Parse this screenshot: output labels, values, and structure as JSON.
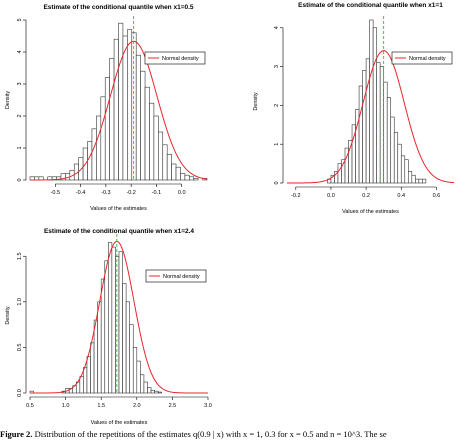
{
  "caption": {
    "label": "Figure 2.",
    "text": "Distribution of the repetitions of the estimates q(0.9 | x) with x = 1, 0.3 for x = 0.5 and n = 10^3. The se"
  },
  "chart_data": [
    {
      "type": "bar",
      "title": "Estimate of the conditional quantile when x1=0.5",
      "xlabel": "Values of the estimates",
      "ylabel": "Density",
      "xlim": [
        -0.6,
        0.1
      ],
      "ylim": [
        0,
        5
      ],
      "xticks": [
        -0.5,
        -0.4,
        -0.3,
        -0.2,
        -0.1,
        0.0
      ],
      "xtick_labels": [
        "-0.5",
        "-0.4",
        "-0.3",
        "-0.2",
        "-0.1",
        "0.0"
      ],
      "yticks": [
        0,
        1,
        2,
        3,
        4,
        5
      ],
      "ytick_labels": [
        "0",
        "1",
        "2",
        "3",
        "4",
        "5"
      ],
      "bin_start": -0.6,
      "bin_width": 0.0175,
      "values": [
        0.1,
        0.1,
        0.1,
        0,
        0.1,
        0.1,
        0.1,
        0.2,
        0.2,
        0.3,
        0.5,
        0.7,
        1.0,
        1.2,
        1.6,
        2.0,
        2.6,
        3.2,
        3.8,
        4.4,
        4.9,
        4.5,
        4.7,
        4.6,
        3.9,
        3.4,
        2.9,
        2.4,
        2.0,
        1.5,
        1.1,
        0.8,
        0.5,
        0.4,
        0.2,
        0.15,
        0.1,
        0.05,
        0,
        0.05
      ],
      "normal_curve": {
        "label": "Normal density",
        "mean": -0.19,
        "sd": 0.092,
        "color": "#e8262d"
      },
      "vline": {
        "x": -0.19,
        "color": "#1bb41b"
      },
      "legend": {
        "position": "top-right",
        "entries": [
          "Normal density"
        ]
      }
    },
    {
      "type": "bar",
      "title": "Estimate of the conditional quantile when x1=1",
      "xlabel": "Values of the estimates",
      "ylabel": "Density",
      "xlim": [
        -0.25,
        0.7
      ],
      "ylim": [
        0,
        4.2
      ],
      "xticks": [
        -0.2,
        0.0,
        0.2,
        0.4,
        0.6
      ],
      "xtick_labels": [
        "-0.2",
        "0.0",
        "0.2",
        "0.4",
        "0.6"
      ],
      "yticks": [
        0,
        1,
        2,
        3,
        4
      ],
      "ytick_labels": [
        "0",
        "1",
        "2",
        "3",
        "4"
      ],
      "bin_start": -0.02,
      "bin_width": 0.02,
      "values": [
        0.1,
        0.2,
        0.3,
        0.5,
        0.6,
        0.9,
        1.1,
        1.5,
        1.9,
        2.5,
        2.9,
        3.2,
        4.2,
        4.0,
        3.1,
        3.0,
        2.6,
        2.2,
        1.7,
        1.3,
        1.0,
        0.7,
        0.6,
        0.3,
        0.2,
        0.1,
        0.1,
        0.1
      ],
      "normal_curve": {
        "label": "Normal density",
        "mean": 0.3,
        "sd": 0.117,
        "color": "#e8262d"
      },
      "vline": {
        "x": 0.3,
        "color": "#1bb41b"
      },
      "legend": {
        "position": "top-right",
        "entries": [
          "Normal density"
        ]
      }
    },
    {
      "type": "bar",
      "title": "Estimate of the conditional quantile when x1=2.4",
      "xlabel": "Values of the estimates",
      "ylabel": "Density",
      "xlim": [
        0.5,
        3.0
      ],
      "ylim": [
        0,
        1.7
      ],
      "xticks": [
        0.5,
        1.0,
        1.5,
        2.0,
        2.5,
        3.0
      ],
      "xtick_labels": [
        "0.5",
        "1.0",
        "1.5",
        "2.0",
        "2.5",
        "3.0"
      ],
      "yticks": [
        0.0,
        0.5,
        1.0,
        1.5
      ],
      "ytick_labels": [
        "0.0",
        "0.5",
        "1.0",
        "1.5"
      ],
      "bin_start": 0.5,
      "bin_width": 0.05,
      "values": [
        0.02,
        0,
        0,
        0,
        0,
        0,
        0,
        0,
        0,
        0.02,
        0.05,
        0.05,
        0.08,
        0.12,
        0.18,
        0.28,
        0.4,
        0.55,
        0.8,
        1.0,
        1.25,
        1.45,
        1.65,
        1.6,
        1.5,
        1.55,
        1.2,
        1.0,
        0.75,
        0.5,
        0.35,
        0.2,
        0.12,
        0.06,
        0.03,
        0.02,
        0.01
      ],
      "normal_curve": {
        "label": "Normal density",
        "mean": 1.72,
        "sd": 0.24,
        "color": "#e8262d"
      },
      "vline": {
        "x": 1.72,
        "color": "#1bb41b"
      },
      "legend": {
        "position": "top-right",
        "entries": [
          "Normal density"
        ]
      }
    }
  ]
}
